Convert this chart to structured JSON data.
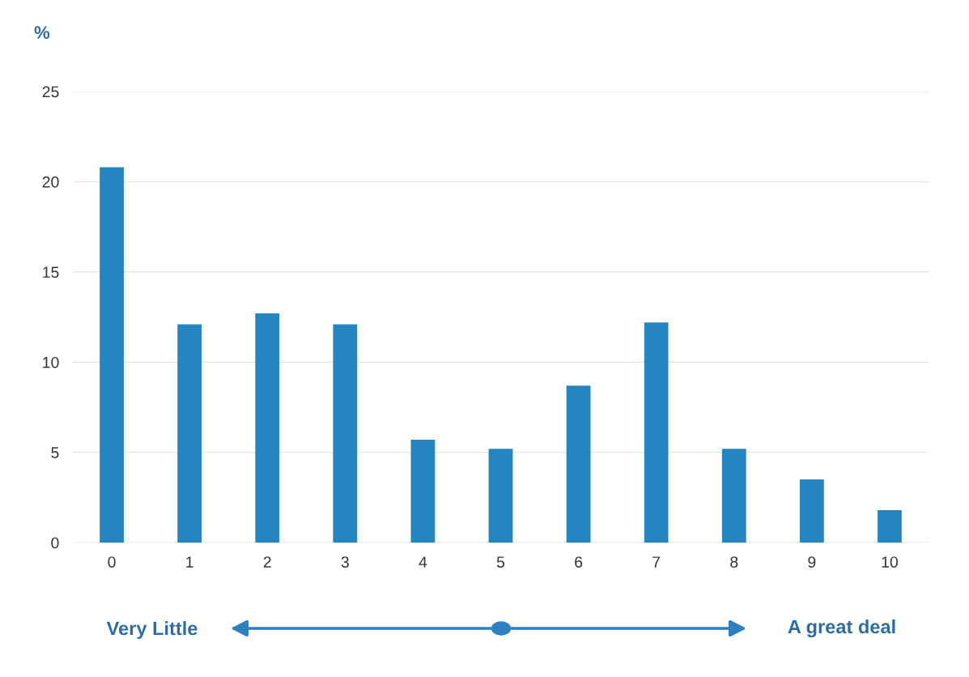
{
  "chart_data": {
    "type": "bar",
    "ylabel": "%",
    "categories": [
      "0",
      "1",
      "2",
      "3",
      "4",
      "5",
      "6",
      "7",
      "8",
      "9",
      "10"
    ],
    "values": [
      20.8,
      12.1,
      12.7,
      12.1,
      5.7,
      5.2,
      8.7,
      12.2,
      5.2,
      3.5,
      1.8
    ],
    "color": "#2585c0",
    "ylim": [
      0,
      25
    ],
    "yticks": [
      0,
      5,
      10,
      15,
      20,
      25
    ],
    "grid": "y",
    "legend": false,
    "annotations": [
      "Very Little",
      "A great deal"
    ]
  }
}
